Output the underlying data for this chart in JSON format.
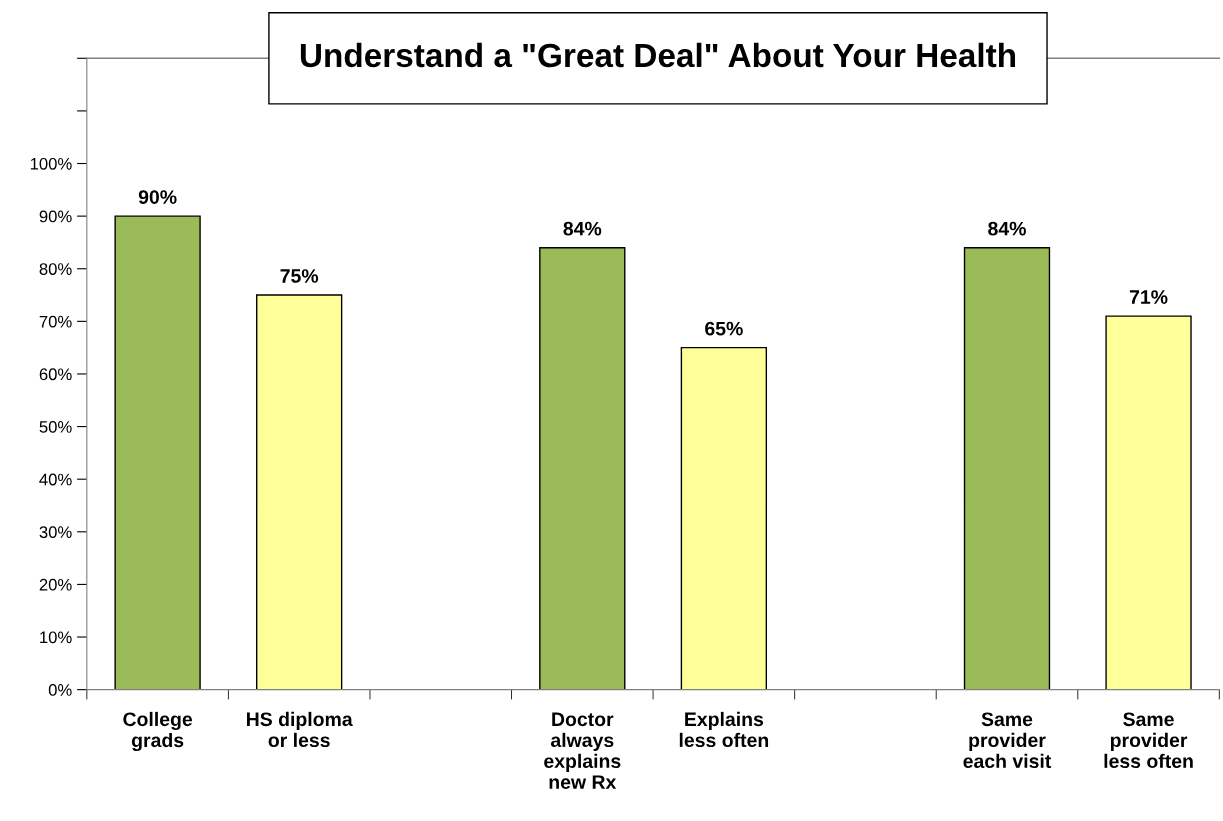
{
  "chart_data": {
    "type": "bar",
    "title": "Understand a \"Great Deal\" About Your Health",
    "categories": [
      "College\ngrads",
      "HS diploma\nor less",
      null,
      "Doctor\nalways\nexplains\nnew Rx",
      "Explains\nless often",
      null,
      "Same\nprovider\neach visit",
      "Same\nprovider\nless often"
    ],
    "values": [
      90,
      75,
      null,
      84,
      65,
      null,
      84,
      71
    ],
    "colors": [
      "#9bbb59",
      "#ffff99",
      null,
      "#9bbb59",
      "#ffff99",
      null,
      "#9bbb59",
      "#ffff99"
    ],
    "value_labels": [
      "90%",
      "75%",
      null,
      "84%",
      "65%",
      null,
      "84%",
      "71%"
    ],
    "ylim": [
      0,
      120
    ],
    "yticks": [
      {
        "value": 0,
        "label": "0%"
      },
      {
        "value": 10,
        "label": "10%"
      },
      {
        "value": 20,
        "label": "20%"
      },
      {
        "value": 30,
        "label": "30%"
      },
      {
        "value": 40,
        "label": "40%"
      },
      {
        "value": 50,
        "label": "50%"
      },
      {
        "value": 60,
        "label": "60%"
      },
      {
        "value": 70,
        "label": "70%"
      },
      {
        "value": 80,
        "label": "80%"
      },
      {
        "value": 90,
        "label": "90%"
      },
      {
        "value": 100,
        "label": "100%"
      },
      {
        "value": 110,
        "label": null
      },
      {
        "value": 120,
        "label": null
      }
    ],
    "grid": false,
    "legend": false
  }
}
